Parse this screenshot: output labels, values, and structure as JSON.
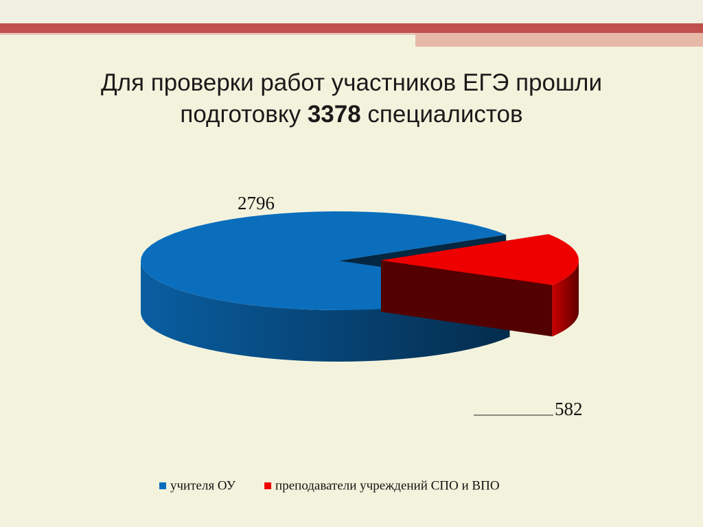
{
  "chart_data": {
    "type": "pie",
    "title": [
      "Для проверки работ участников ЕГЭ прошли",
      "подготовку"
    ],
    "title_total": 3378,
    "title_suffix": "специалистов",
    "categories": [
      "учителя ОУ",
      "преподаватели учреждений СПО и ВПО"
    ],
    "values": [
      2796,
      582
    ],
    "colors": [
      "#0a6ebd",
      "#ee0000"
    ],
    "legend": "bottom"
  }
}
